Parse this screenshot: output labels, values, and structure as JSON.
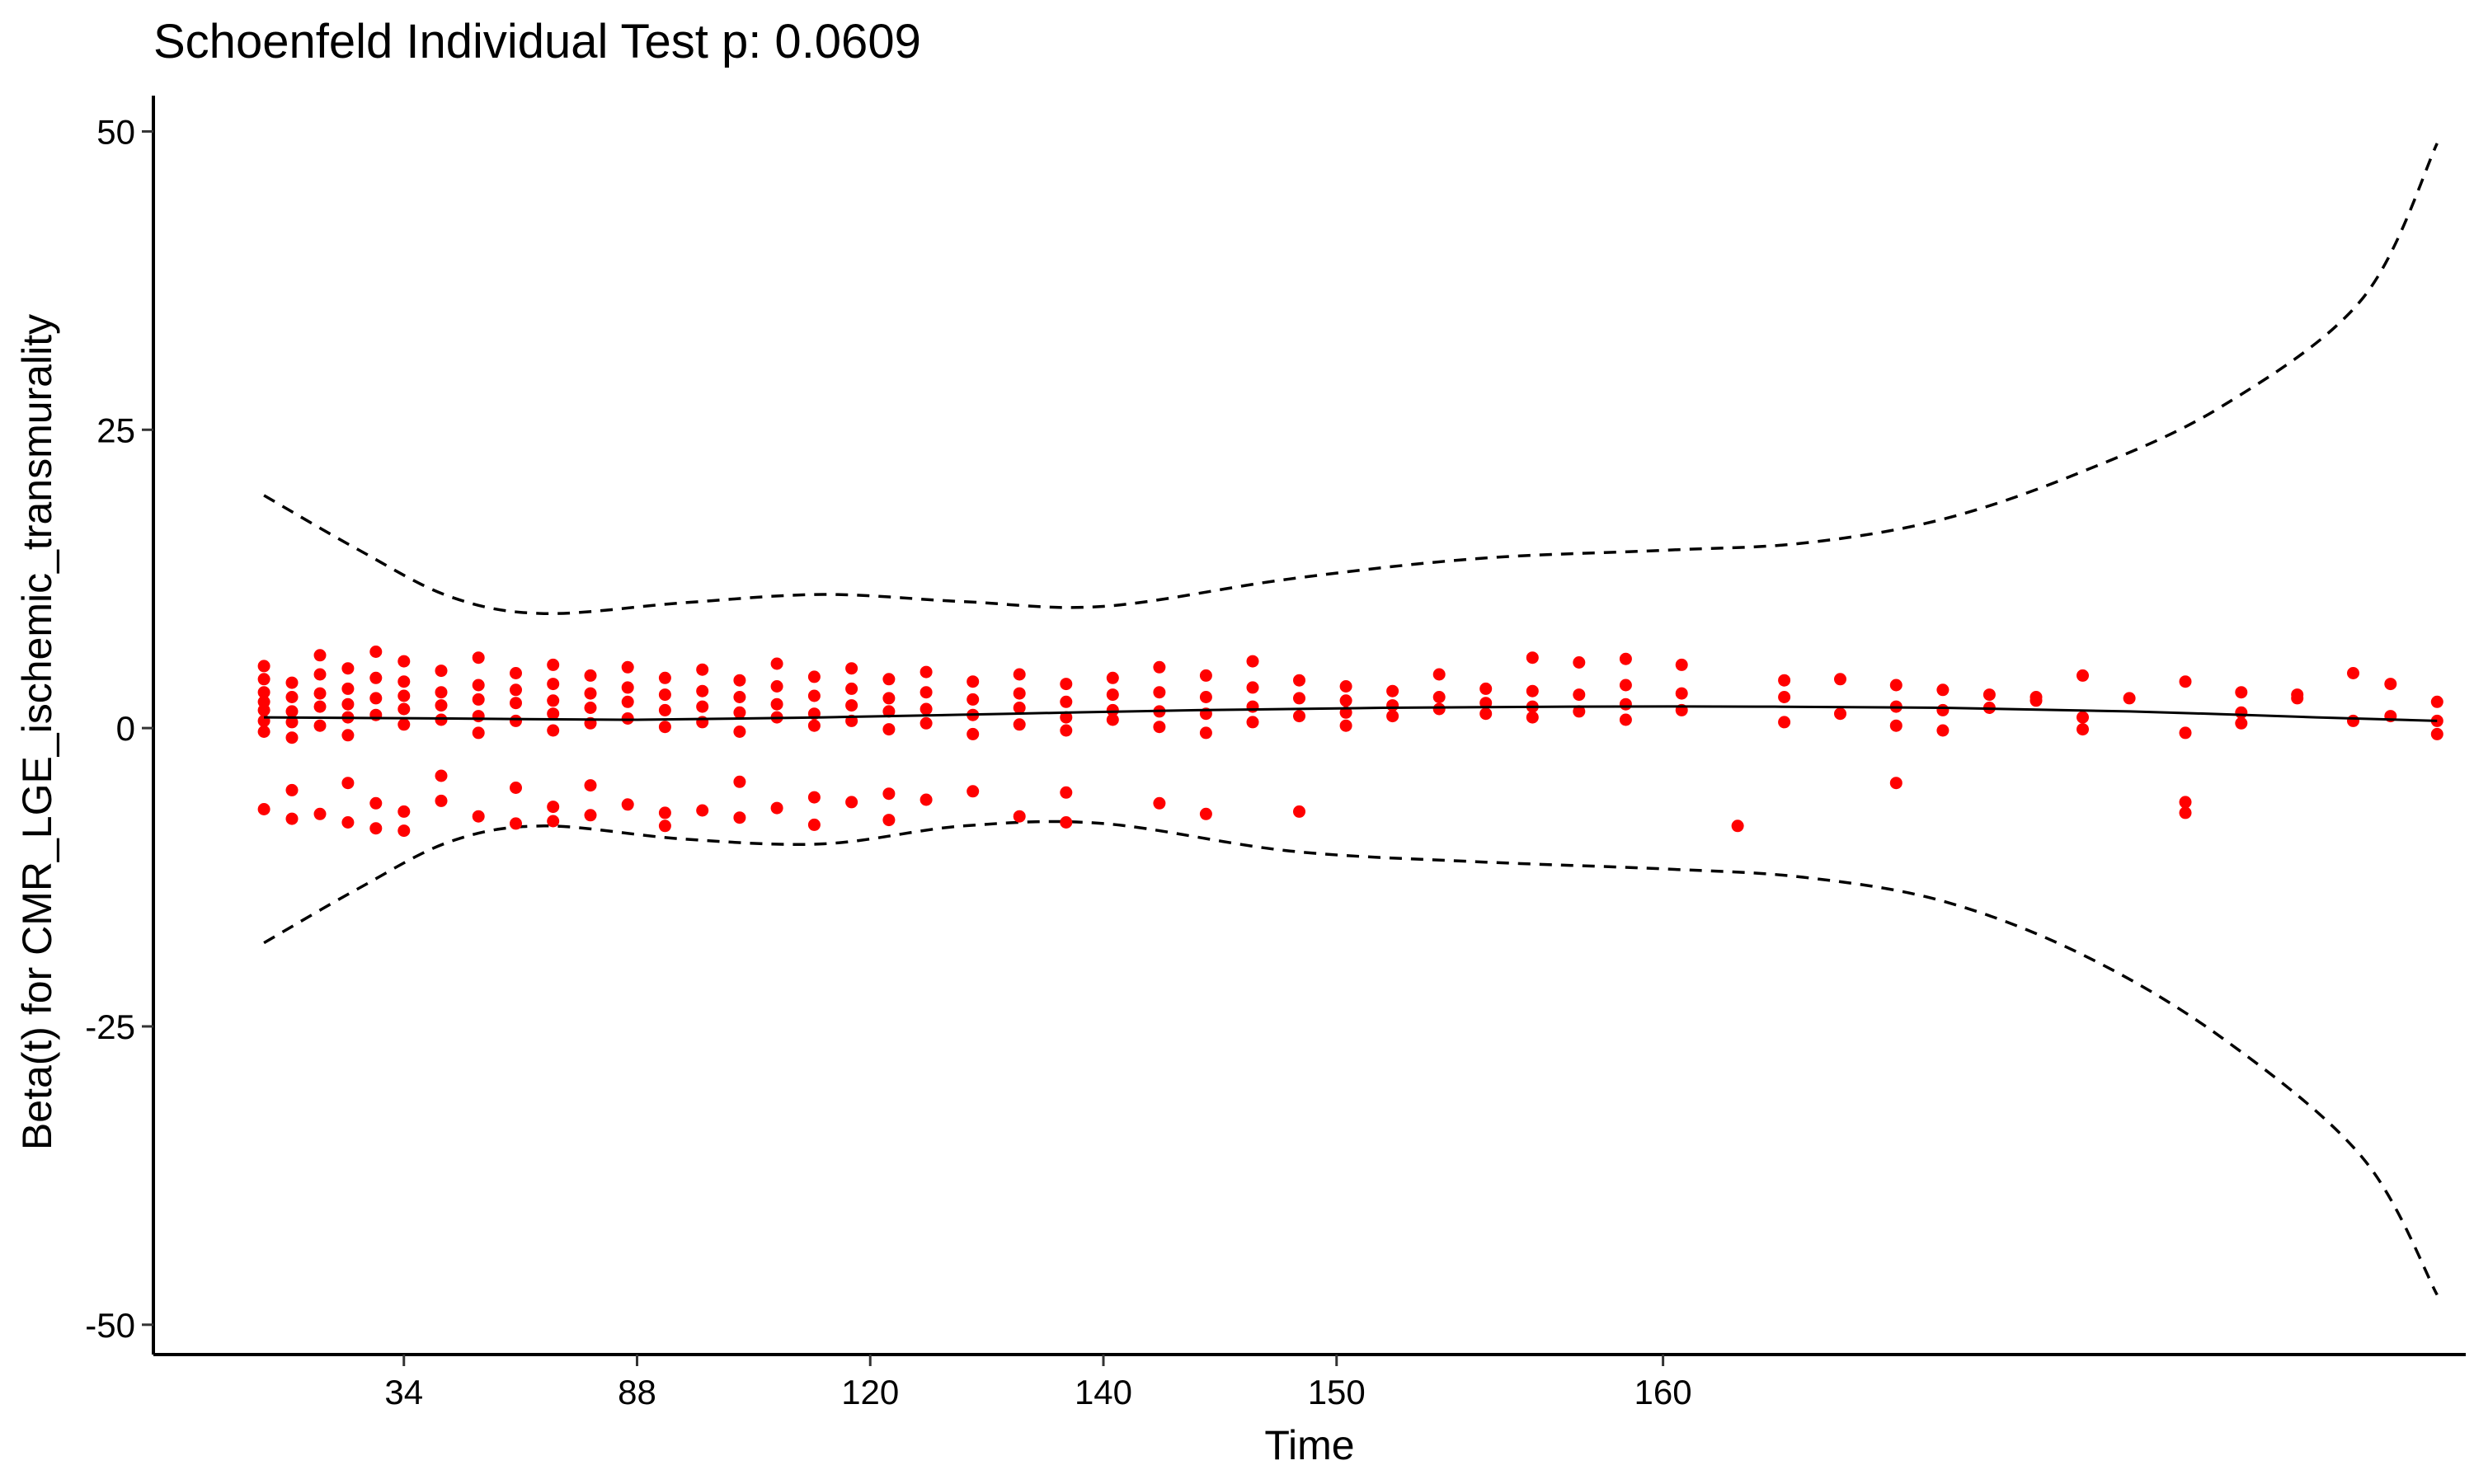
{
  "chart_data": {
    "type": "scatter",
    "title": "Schoenfeld Individual Test p: 0.0609",
    "xlabel": "Time",
    "ylabel": "Beta(t) for CMR_LGE_ischemic_transmurality",
    "x_tick_labels": [
      "34",
      "88",
      "120",
      "140",
      "150",
      "160"
    ],
    "x_tick_index": [
      2.5,
      5.0,
      7.5,
      10.0,
      12.5,
      16.0
    ],
    "x_range": [
      0,
      23.5
    ],
    "y_ticks": [
      -50,
      -25,
      0,
      25,
      50
    ],
    "y_tick_labels": [
      "-50",
      "-25",
      "0",
      "25",
      "50"
    ],
    "ylim": [
      -52.5,
      53
    ],
    "grid": false,
    "point_color": "#ff0000",
    "series": [
      {
        "kind": "points",
        "columns": [
          {
            "x": 1.0,
            "y": [
              5.2,
              4.1,
              3.0,
              2.2,
              1.5,
              0.6,
              -0.3,
              -6.8
            ]
          },
          {
            "x": 1.3,
            "y": [
              3.8,
              2.6,
              1.4,
              0.5,
              -0.8,
              -5.2,
              -7.6
            ]
          },
          {
            "x": 1.6,
            "y": [
              6.1,
              4.5,
              2.9,
              1.8,
              0.2,
              -7.2
            ]
          },
          {
            "x": 1.9,
            "y": [
              5.0,
              3.3,
              2.0,
              0.9,
              -0.6,
              -4.6,
              -7.9
            ]
          },
          {
            "x": 2.2,
            "y": [
              6.4,
              4.2,
              2.5,
              1.1,
              -8.4,
              -6.3
            ]
          },
          {
            "x": 2.5,
            "y": [
              5.6,
              3.9,
              2.7,
              1.6,
              0.3,
              -7.0,
              -8.6
            ]
          },
          {
            "x": 2.9,
            "y": [
              4.8,
              3.0,
              1.9,
              0.7,
              -6.1,
              -4.0
            ]
          },
          {
            "x": 3.3,
            "y": [
              5.9,
              3.6,
              2.4,
              1.0,
              -0.4,
              -7.4
            ]
          },
          {
            "x": 3.7,
            "y": [
              4.6,
              3.2,
              2.1,
              0.6,
              -5.0,
              -8.0
            ]
          },
          {
            "x": 4.1,
            "y": [
              5.3,
              3.7,
              2.3,
              1.2,
              -0.2,
              -6.6,
              -7.8
            ]
          },
          {
            "x": 4.5,
            "y": [
              4.4,
              2.9,
              1.7,
              0.4,
              -4.8,
              -7.3
            ]
          },
          {
            "x": 4.9,
            "y": [
              5.1,
              3.4,
              2.2,
              0.8,
              -6.4
            ]
          },
          {
            "x": 5.3,
            "y": [
              4.2,
              2.8,
              1.5,
              0.1,
              -7.1,
              -8.2
            ]
          },
          {
            "x": 5.7,
            "y": [
              4.9,
              3.1,
              1.8,
              0.5,
              -6.9
            ]
          },
          {
            "x": 6.1,
            "y": [
              4.0,
              2.6,
              1.3,
              -0.3,
              -7.5,
              -4.5
            ]
          },
          {
            "x": 6.5,
            "y": [
              5.4,
              3.5,
              2.0,
              0.9,
              -6.7
            ]
          },
          {
            "x": 6.9,
            "y": [
              4.3,
              2.7,
              1.2,
              0.2,
              -5.8,
              -8.1
            ]
          },
          {
            "x": 7.3,
            "y": [
              5.0,
              3.3,
              1.9,
              0.6,
              -6.2
            ]
          },
          {
            "x": 7.7,
            "y": [
              4.1,
              2.5,
              1.4,
              -0.1,
              -5.5,
              -7.7
            ]
          },
          {
            "x": 8.1,
            "y": [
              4.7,
              3.0,
              1.6,
              0.4,
              -6.0
            ]
          },
          {
            "x": 8.6,
            "y": [
              3.9,
              2.4,
              1.1,
              -0.5,
              -5.3
            ]
          },
          {
            "x": 9.1,
            "y": [
              4.5,
              2.9,
              1.7,
              0.3,
              -7.4
            ]
          },
          {
            "x": 9.6,
            "y": [
              3.7,
              2.2,
              0.9,
              -0.2,
              -5.4,
              -7.9
            ]
          },
          {
            "x": 10.1,
            "y": [
              4.2,
              2.8,
              1.5,
              0.7
            ]
          },
          {
            "x": 10.6,
            "y": [
              5.1,
              3.0,
              1.4,
              0.1,
              -6.3
            ]
          },
          {
            "x": 11.1,
            "y": [
              4.4,
              2.6,
              1.2,
              -0.4,
              -7.2
            ]
          },
          {
            "x": 11.6,
            "y": [
              5.6,
              3.4,
              1.8,
              0.5
            ]
          },
          {
            "x": 12.1,
            "y": [
              4.0,
              2.5,
              1.0,
              -7.0
            ]
          },
          {
            "x": 12.6,
            "y": [
              3.5,
              2.3,
              1.3,
              0.2
            ]
          },
          {
            "x": 13.1,
            "y": [
              3.1,
              1.9,
              1.0
            ]
          },
          {
            "x": 13.6,
            "y": [
              4.5,
              2.6,
              1.6
            ]
          },
          {
            "x": 14.1,
            "y": [
              3.3,
              2.1,
              1.2
            ]
          },
          {
            "x": 14.6,
            "y": [
              5.9,
              3.1,
              1.8,
              0.9
            ]
          },
          {
            "x": 15.1,
            "y": [
              5.5,
              2.8,
              1.4
            ]
          },
          {
            "x": 15.6,
            "y": [
              5.8,
              3.6,
              2.0,
              0.7
            ]
          },
          {
            "x": 16.2,
            "y": [
              5.3,
              2.9,
              1.5
            ]
          },
          {
            "x": 16.8,
            "y": [
              -8.2
            ]
          },
          {
            "x": 17.3,
            "y": [
              4.0,
              2.6,
              0.5
            ]
          },
          {
            "x": 17.9,
            "y": [
              4.1,
              1.2
            ]
          },
          {
            "x": 18.5,
            "y": [
              3.6,
              1.8,
              0.2,
              -4.6
            ]
          },
          {
            "x": 19.0,
            "y": [
              3.2,
              1.5,
              -0.2
            ]
          },
          {
            "x": 19.5,
            "y": [
              2.8,
              1.7
            ]
          },
          {
            "x": 20.0,
            "y": [
              2.6,
              2.3
            ]
          },
          {
            "x": 20.5,
            "y": [
              4.4,
              0.9,
              -0.1
            ]
          },
          {
            "x": 21.0,
            "y": [
              2.5
            ]
          },
          {
            "x": 21.6,
            "y": [
              3.9,
              -0.4,
              -6.2,
              -7.1
            ]
          },
          {
            "x": 22.2,
            "y": [
              3.0,
              1.3,
              0.4
            ]
          },
          {
            "x": 22.8,
            "y": [
              2.8,
              2.5
            ]
          },
          {
            "x": 23.4,
            "y": [
              4.6,
              0.6
            ]
          },
          {
            "x": 23.8,
            "y": [
              3.7,
              1.0
            ]
          },
          {
            "x": 24.3,
            "y": [
              2.2,
              0.6,
              -0.5
            ]
          }
        ]
      },
      {
        "kind": "line",
        "role": "fit",
        "style": "solid",
        "x": [
          1.0,
          3.0,
          5.0,
          7.0,
          9.0,
          11.0,
          13.0,
          15.0,
          17.0,
          19.0,
          21.0,
          23.0,
          24.3
        ],
        "y": [
          0.9,
          0.8,
          0.7,
          0.9,
          1.2,
          1.5,
          1.7,
          1.8,
          1.8,
          1.7,
          1.4,
          0.9,
          0.6
        ]
      },
      {
        "kind": "line",
        "role": "upper-band",
        "style": "dashed",
        "x": [
          1.0,
          2.0,
          3.0,
          4.0,
          5.5,
          7.0,
          8.5,
          10.0,
          12.0,
          14.0,
          16.0,
          17.5,
          19.0,
          20.5,
          22.0,
          23.5,
          24.3
        ],
        "y": [
          19.5,
          15.0,
          11.0,
          9.6,
          10.5,
          11.2,
          10.6,
          10.2,
          12.5,
          14.2,
          14.9,
          15.5,
          17.5,
          21.5,
          27.0,
          36.0,
          49.0
        ]
      },
      {
        "kind": "line",
        "role": "lower-band",
        "style": "dashed",
        "x": [
          1.0,
          2.0,
          3.0,
          4.0,
          5.5,
          7.0,
          8.5,
          10.0,
          12.0,
          14.0,
          16.0,
          17.5,
          19.0,
          20.5,
          22.0,
          23.5,
          24.3
        ],
        "y": [
          -18.0,
          -13.5,
          -9.5,
          -8.2,
          -9.3,
          -9.7,
          -8.2,
          -8.0,
          -10.3,
          -11.2,
          -11.8,
          -12.5,
          -14.5,
          -19.0,
          -26.0,
          -36.0,
          -47.5
        ]
      }
    ]
  }
}
